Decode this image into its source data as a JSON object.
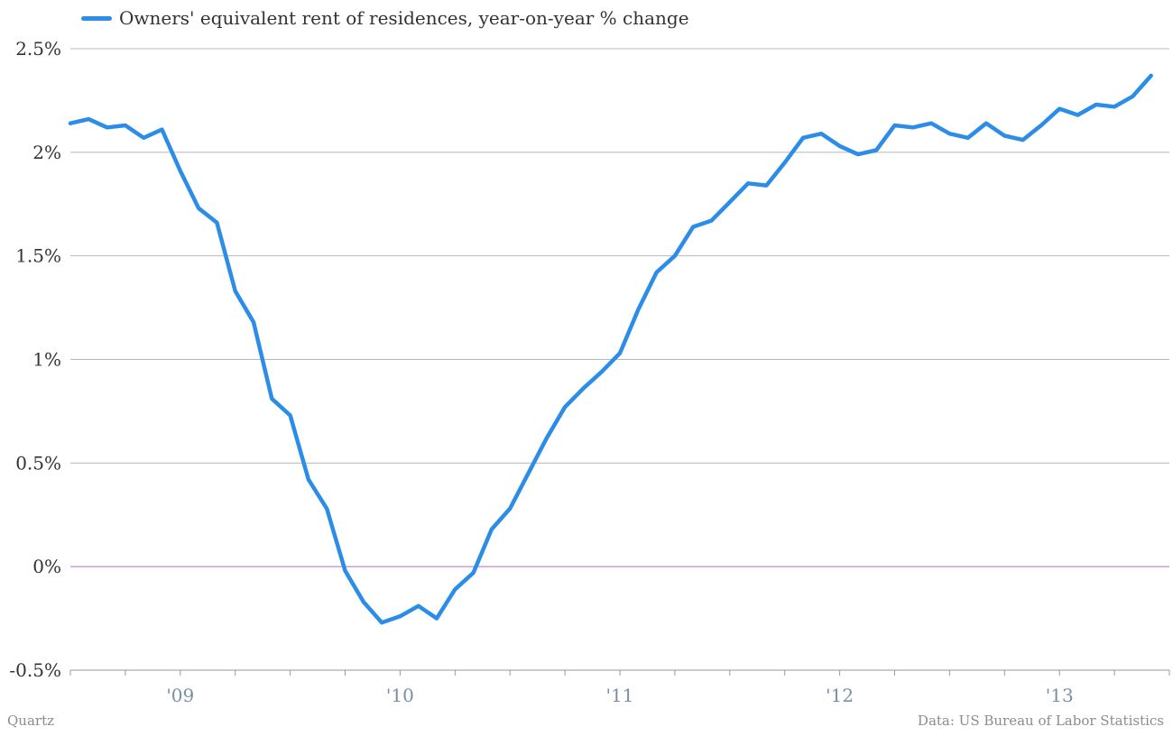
{
  "chart_data": {
    "type": "line",
    "title": "",
    "xlabel": "",
    "ylabel": "",
    "ylim": [
      -0.5,
      2.5
    ],
    "xlim": [
      "2008-07",
      "2013-07"
    ],
    "y_ticks": [
      -0.5,
      0,
      0.5,
      1,
      1.5,
      2,
      2.5
    ],
    "y_tick_labels": [
      "-0.5%",
      "0%",
      "0.5%",
      "1%",
      "1.5%",
      "2%",
      "2.5%"
    ],
    "x_tick_labels": [
      {
        "label": "'09",
        "date": "2009-01"
      },
      {
        "label": "'10",
        "date": "2010-01"
      },
      {
        "label": "'11",
        "date": "2011-01"
      },
      {
        "label": "'12",
        "date": "2012-01"
      },
      {
        "label": "'13",
        "date": "2013-01"
      }
    ],
    "grid": true,
    "legend": "top-left",
    "colors": {
      "series": "#2b8de8",
      "zero_line": "#c879d6",
      "grid": "#b8b8b8",
      "axis_text": "#333333",
      "tick_text": "#7a8fa3"
    },
    "series": [
      {
        "name": "Owners' equivalent rent of residences, year-on-year % change",
        "points": [
          [
            "2008-07",
            2.14
          ],
          [
            "2008-08",
            2.16
          ],
          [
            "2008-09",
            2.12
          ],
          [
            "2008-10",
            2.13
          ],
          [
            "2008-11",
            2.07
          ],
          [
            "2008-12",
            2.11
          ],
          [
            "2009-01",
            1.91
          ],
          [
            "2009-02",
            1.73
          ],
          [
            "2009-03",
            1.66
          ],
          [
            "2009-04",
            1.33
          ],
          [
            "2009-05",
            1.18
          ],
          [
            "2009-06",
            0.81
          ],
          [
            "2009-07",
            0.73
          ],
          [
            "2009-08",
            0.42
          ],
          [
            "2009-09",
            0.28
          ],
          [
            "2009-10",
            -0.02
          ],
          [
            "2009-11",
            -0.17
          ],
          [
            "2009-12",
            -0.27
          ],
          [
            "2010-01",
            -0.24
          ],
          [
            "2010-02",
            -0.19
          ],
          [
            "2010-03",
            -0.25
          ],
          [
            "2010-04",
            -0.11
          ],
          [
            "2010-05",
            -0.03
          ],
          [
            "2010-06",
            0.18
          ],
          [
            "2010-07",
            0.28
          ],
          [
            "2010-08",
            0.45
          ],
          [
            "2010-09",
            0.62
          ],
          [
            "2010-10",
            0.77
          ],
          [
            "2010-11",
            0.86
          ],
          [
            "2010-12",
            0.94
          ],
          [
            "2011-01",
            1.03
          ],
          [
            "2011-02",
            1.24
          ],
          [
            "2011-03",
            1.42
          ],
          [
            "2011-04",
            1.5
          ],
          [
            "2011-05",
            1.64
          ],
          [
            "2011-06",
            1.67
          ],
          [
            "2011-07",
            1.76
          ],
          [
            "2011-08",
            1.85
          ],
          [
            "2011-09",
            1.84
          ],
          [
            "2011-10",
            1.95
          ],
          [
            "2011-11",
            2.07
          ],
          [
            "2011-12",
            2.09
          ],
          [
            "2012-01",
            2.03
          ],
          [
            "2012-02",
            1.99
          ],
          [
            "2012-03",
            2.01
          ],
          [
            "2012-04",
            2.13
          ],
          [
            "2012-05",
            2.12
          ],
          [
            "2012-06",
            2.14
          ],
          [
            "2012-07",
            2.09
          ],
          [
            "2012-08",
            2.07
          ],
          [
            "2012-09",
            2.14
          ],
          [
            "2012-10",
            2.08
          ],
          [
            "2012-11",
            2.06
          ],
          [
            "2012-12",
            2.13
          ],
          [
            "2013-01",
            2.21
          ],
          [
            "2013-02",
            2.18
          ],
          [
            "2013-03",
            2.23
          ],
          [
            "2013-04",
            2.22
          ],
          [
            "2013-05",
            2.27
          ],
          [
            "2013-06",
            2.37
          ]
        ]
      }
    ]
  },
  "footer": {
    "source_left": "Quartz",
    "source_right": "Data: US Bureau of Labor Statistics"
  }
}
